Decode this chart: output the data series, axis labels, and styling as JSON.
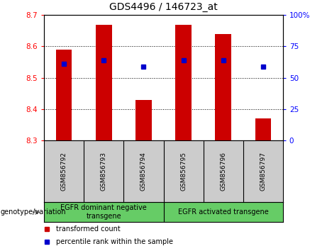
{
  "title": "GDS4496 / 146723_at",
  "samples": [
    "GSM856792",
    "GSM856793",
    "GSM856794",
    "GSM856795",
    "GSM856796",
    "GSM856797"
  ],
  "bar_values": [
    8.59,
    8.67,
    8.43,
    8.67,
    8.64,
    8.37
  ],
  "bar_base": 8.3,
  "percentile_values": [
    8.545,
    8.555,
    8.535,
    8.555,
    8.555,
    8.535
  ],
  "ylim_left": [
    8.3,
    8.7
  ],
  "ylim_right": [
    0,
    100
  ],
  "yticks_left": [
    8.3,
    8.4,
    8.5,
    8.6,
    8.7
  ],
  "yticks_right": [
    0,
    25,
    50,
    75,
    100
  ],
  "ytick_labels_right": [
    "0",
    "25",
    "50",
    "75",
    "100%"
  ],
  "bar_color": "#cc0000",
  "percentile_color": "#0000cc",
  "groups": [
    {
      "label": "EGFR dominant negative\ntransgene",
      "samples": [
        0,
        1,
        2
      ]
    },
    {
      "label": "EGFR activated transgene",
      "samples": [
        3,
        4,
        5
      ]
    }
  ],
  "group_color": "#66cc66",
  "sample_box_color": "#cccccc",
  "xlabel_left": "genotype/variation",
  "legend_items": [
    {
      "label": "transformed count",
      "color": "#cc0000"
    },
    {
      "label": "percentile rank within the sample",
      "color": "#0000cc"
    }
  ],
  "title_fontsize": 10,
  "tick_fontsize": 7.5,
  "sample_fontsize": 6.5,
  "group_fontsize": 7,
  "legend_fontsize": 7,
  "genotype_fontsize": 7,
  "bg_color": "#ffffff"
}
